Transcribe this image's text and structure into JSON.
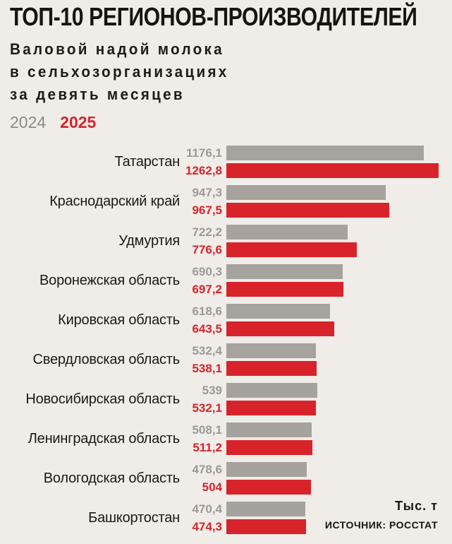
{
  "header": {
    "title": "ТОП-10 РЕГИОНОВ-ПРОИЗВОДИТЕЛЕЙ",
    "subtitle_lines": [
      "Валовой надой молока",
      "в сельхозорганизациях",
      "за девять месяцев"
    ]
  },
  "legend": {
    "year_2024": "2024",
    "year_2025": "2025"
  },
  "footer": {
    "units": "Тыс. т",
    "source": "ИСТОЧНИК: РОССТАТ"
  },
  "colors": {
    "background": "#f0ede9",
    "bar_2024": "#a6a29e",
    "bar_2025": "#d8232b",
    "value_text_2024": "#9c9a98",
    "value_text_2025": "#d8232b",
    "label_text": "#1a1915"
  },
  "chart_data": {
    "type": "bar",
    "orientation": "horizontal",
    "title": "ТОП-10 РЕГИОНОВ-ПРОИЗВОДИТЕЛЕЙ",
    "subtitle": "Валовой надой молока в сельхозорганизациях за девять месяцев",
    "unit_label": "Тыс. т",
    "source": "ИСТОЧНИК: РОССТАТ",
    "legend_position": "top-left",
    "grid": false,
    "xlim": [
      0,
      1262.8
    ],
    "categories": [
      "Татарстан",
      "Краснодарский край",
      "Удмуртия",
      "Воронежская область",
      "Кировская область",
      "Свердловская область",
      "Новосибирская область",
      "Ленинградская область",
      "Вологодская область",
      "Башкортостан"
    ],
    "series": [
      {
        "name": "2024",
        "values": [
          1176.1,
          947.3,
          722.2,
          690.3,
          618.6,
          532.4,
          539,
          508.1,
          478.6,
          470.4
        ],
        "value_labels": [
          "1176,1",
          "947,3",
          "722,2",
          "690,3",
          "618,6",
          "532,4",
          "539",
          "508,1",
          "478,6",
          "470,4"
        ]
      },
      {
        "name": "2025",
        "values": [
          1262.8,
          967.5,
          776.6,
          697.2,
          643.5,
          538.1,
          532.1,
          511.2,
          504,
          474.3
        ],
        "value_labels": [
          "1262,8",
          "967,5",
          "776,6",
          "697,2",
          "643,5",
          "538,1",
          "532,1",
          "511,2",
          "504",
          "474,3"
        ]
      }
    ]
  }
}
